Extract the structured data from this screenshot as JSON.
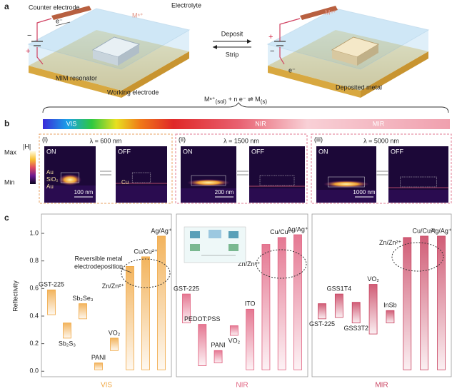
{
  "panel_a": {
    "label": "a",
    "counter_electrode": "Counter electrode",
    "electrolyte": "Electrolyte",
    "electron": "e⁻",
    "plus": "+",
    "minus": "−",
    "ion": "Mⁿ⁺",
    "mim": "MIM resonator",
    "working": "Working electrode",
    "deposit": "Deposit",
    "strip": "Strip",
    "deposited": "Deposited metal",
    "equation": [
      "Mⁿ⁺",
      "(sol)",
      " + n e⁻ ⇌ M",
      "(s)"
    ]
  },
  "panel_b": {
    "label": "b",
    "spectrum": [
      "VIS",
      "NIR",
      "MIR"
    ],
    "colorbar": {
      "title": "|H|",
      "max": "Max",
      "min": "Min"
    },
    "on": "ON",
    "off": "OFF",
    "layers": [
      "Au",
      "SiO₂",
      "Au",
      "Cu"
    ],
    "maps": [
      {
        "index": "(i)",
        "wavelength": "λ = 600 nm",
        "scale": "100 nm"
      },
      {
        "index": "(ii)",
        "wavelength": "λ = 1500 nm",
        "scale": "200 nm"
      },
      {
        "index": "(iii)",
        "wavelength": "λ = 5000 nm",
        "scale": "1000 nm"
      }
    ]
  },
  "panel_c": {
    "label": "c",
    "annotation": [
      "Reversible metal",
      "electrodeposition"
    ]
  },
  "chart_data": [
    {
      "type": "bar",
      "x_label": "VIS",
      "y_label": "Reflectivity",
      "color": "#f0a640",
      "categories": [
        "GST-225",
        "Sb₂S₃",
        "Sb₂Se₃",
        "PANI",
        "VO₂",
        "Zn/Zn²⁺",
        "Cu/Cu²⁺",
        "Ag/Ag⁺"
      ],
      "values": [
        [
          0.41,
          0.59
        ],
        [
          0.24,
          0.35
        ],
        [
          0.38,
          0.49
        ],
        [
          0.01,
          0.06
        ],
        [
          0.15,
          0.24
        ],
        [
          0.01,
          0.76
        ],
        [
          0.01,
          0.83
        ],
        [
          0.01,
          0.98
        ]
      ],
      "ylim": [
        -0.04,
        1.14
      ],
      "yticks": [
        {
          "value": 0,
          "label": "0.0"
        },
        0.2,
        0.4,
        0.6,
        0.8,
        {
          "value": 1,
          "label": "1.0"
        }
      ]
    },
    {
      "type": "bar",
      "x_label": "NIR",
      "color": "#e0607f",
      "categories": [
        "GST-225",
        "PEDOT:PSS",
        "PANI",
        "VO₂",
        "ITO",
        "Zn/Zn²⁺",
        "Cu/Cu²⁺",
        "Ag/Ag⁺"
      ],
      "values": [
        [
          0.35,
          0.56
        ],
        [
          0.04,
          0.34
        ],
        [
          0.06,
          0.15
        ],
        [
          0.26,
          0.33
        ],
        [
          0.01,
          0.45
        ],
        [
          0.01,
          0.92
        ],
        [
          0.01,
          0.97
        ],
        [
          0.01,
          0.99
        ]
      ],
      "ylim": [
        -0.04,
        1.14
      ]
    },
    {
      "type": "bar",
      "x_label": "MIR",
      "color": "#c8405e",
      "categories": [
        "GST-225",
        "GSS1T4",
        "GSS3T2",
        "VO₂",
        "InSb",
        "Zn/Zn²⁺",
        "Cu/Cu²⁺",
        "Ag/Ag⁺"
      ],
      "values": [
        [
          0.38,
          0.49
        ],
        [
          0.39,
          0.56
        ],
        [
          0.35,
          0.5
        ],
        [
          0.27,
          0.63
        ],
        [
          0.35,
          0.44
        ],
        [
          0.01,
          0.97
        ],
        [
          0.01,
          0.98
        ],
        [
          0.01,
          0.98
        ]
      ],
      "ylim": [
        -0.04,
        1.14
      ]
    }
  ]
}
